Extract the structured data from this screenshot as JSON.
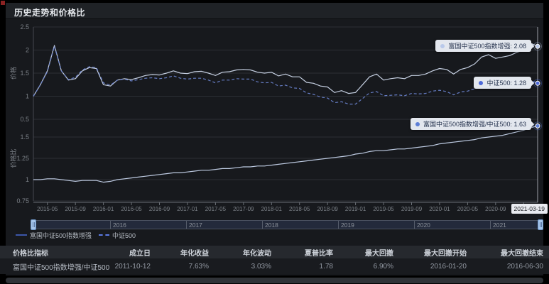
{
  "header": {
    "title": "历史走势和价格比"
  },
  "colors": {
    "background": "#17191d",
    "fund_line": "#cfd9ec",
    "index_line": "#6a83cf",
    "ratio_line": "#c6d4ec",
    "tooltip_bg": "#e3e7ee",
    "grid_line": "#2c2f35",
    "slider_handle": "#a6c6ec"
  },
  "chart_data": {
    "type": "line",
    "x_range": [
      "2015-03",
      "2021-03"
    ],
    "interval": "monthly",
    "xticks": [
      "2015-05",
      "2015-09",
      "2016-01",
      "2016-05",
      "2016-09",
      "2017-01",
      "2017-05",
      "2017-09",
      "2018-01",
      "2018-05",
      "2018-09",
      "2019-01",
      "2019-05",
      "2019-09",
      "2020-01",
      "2020-05",
      "2020-09",
      "2021-01"
    ],
    "crosshair_date": "2021-03-19",
    "panels": [
      {
        "name": "price",
        "ylabel": "价格",
        "ymin": 0.5,
        "ymax": 2.5,
        "yticks": [
          2.5,
          2,
          1.5,
          1,
          0.5
        ],
        "series": [
          {
            "name": "富国中证500指数增强",
            "color": "#cfd9ec",
            "dash": "",
            "values": [
              1.0,
              1.25,
              1.55,
              2.1,
              1.55,
              1.35,
              1.38,
              1.55,
              1.62,
              1.6,
              1.25,
              1.22,
              1.35,
              1.38,
              1.36,
              1.4,
              1.45,
              1.47,
              1.46,
              1.5,
              1.55,
              1.5,
              1.49,
              1.53,
              1.54,
              1.5,
              1.45,
              1.52,
              1.53,
              1.57,
              1.58,
              1.57,
              1.52,
              1.5,
              1.52,
              1.44,
              1.48,
              1.42,
              1.42,
              1.3,
              1.28,
              1.22,
              1.2,
              1.08,
              1.12,
              1.06,
              1.08,
              1.25,
              1.42,
              1.48,
              1.35,
              1.38,
              1.4,
              1.38,
              1.45,
              1.45,
              1.48,
              1.55,
              1.6,
              1.58,
              1.48,
              1.58,
              1.62,
              1.7,
              1.85,
              1.9,
              1.82,
              1.85,
              1.88,
              1.95,
              2.0,
              2.15,
              2.08
            ]
          },
          {
            "name": "中证500",
            "color": "#6a83cf",
            "dash": "4 3",
            "values": [
              1.0,
              1.25,
              1.53,
              2.08,
              1.55,
              1.36,
              1.41,
              1.57,
              1.64,
              1.62,
              1.29,
              1.24,
              1.35,
              1.37,
              1.33,
              1.36,
              1.39,
              1.4,
              1.38,
              1.4,
              1.44,
              1.39,
              1.37,
              1.39,
              1.39,
              1.35,
              1.29,
              1.35,
              1.35,
              1.38,
              1.37,
              1.37,
              1.31,
              1.29,
              1.3,
              1.22,
              1.24,
              1.18,
              1.17,
              1.07,
              1.04,
              0.98,
              0.96,
              0.86,
              0.88,
              0.83,
              0.83,
              0.95,
              1.07,
              1.1,
              1.01,
              1.02,
              1.03,
              1.01,
              1.06,
              1.05,
              1.06,
              1.11,
              1.13,
              1.1,
              1.03,
              1.09,
              1.11,
              1.16,
              1.24,
              1.27,
              1.21,
              1.22,
              1.22,
              1.25,
              1.27,
              1.34,
              1.28
            ]
          }
        ]
      },
      {
        "name": "ratio",
        "ylabel": "价格比",
        "ymin": 0.75,
        "ymax": 1.75,
        "yticks": [
          1.5,
          1.25,
          1,
          0.75
        ],
        "series": [
          {
            "name": "富国中证500指数增强/中证500",
            "color": "#c6d4ec",
            "dash": "",
            "values": [
              1.0,
              1.0,
              1.01,
              1.01,
              1.0,
              0.99,
              0.98,
              0.99,
              0.99,
              0.99,
              0.97,
              0.98,
              1.0,
              1.01,
              1.02,
              1.03,
              1.04,
              1.05,
              1.06,
              1.07,
              1.08,
              1.08,
              1.09,
              1.1,
              1.11,
              1.11,
              1.12,
              1.13,
              1.13,
              1.14,
              1.15,
              1.15,
              1.16,
              1.16,
              1.17,
              1.18,
              1.19,
              1.2,
              1.21,
              1.22,
              1.23,
              1.24,
              1.25,
              1.26,
              1.27,
              1.28,
              1.3,
              1.31,
              1.33,
              1.34,
              1.34,
              1.35,
              1.36,
              1.36,
              1.37,
              1.38,
              1.39,
              1.4,
              1.42,
              1.43,
              1.44,
              1.45,
              1.46,
              1.47,
              1.49,
              1.5,
              1.51,
              1.52,
              1.54,
              1.56,
              1.58,
              1.61,
              1.63
            ]
          }
        ]
      }
    ],
    "markers": [
      {
        "panel": 0,
        "value": 2.08,
        "color": "#b9c9ea"
      },
      {
        "panel": 0,
        "value": 1.28,
        "color": "#4d68d8"
      },
      {
        "panel": 1,
        "value": 1.63,
        "color": "#5d7ed6"
      }
    ]
  },
  "chips": [
    {
      "text": "富国中证500指数增强: 2.08",
      "color": "#b9c9ea"
    },
    {
      "text": "中证500: 1.28",
      "color": "#4d68d8"
    },
    {
      "text": "富国中证500指数增强/中证500: 1.63",
      "color": "#5d7ed6"
    }
  ],
  "axis_pointer_date": "2021-03-19",
  "slider": {
    "years": [
      "2016",
      "2017",
      "2018",
      "2019",
      "2020",
      "2021"
    ]
  },
  "legend": [
    {
      "label": "富国中证500指数增强",
      "type": "solid"
    },
    {
      "label": "中证500",
      "type": "dashed"
    }
  ],
  "table": {
    "headers": [
      "价格比指标",
      "成立日",
      "年化收益",
      "年化波动",
      "夏普比率",
      "最大回撤",
      "最大回撤开始",
      "最大回撤结束"
    ],
    "row": [
      "富国中证500指数增强/中证500",
      "2011-10-12",
      "7.63%",
      "3.03%",
      "1.78",
      "6.90%",
      "2016-01-20",
      "2016-06-30"
    ]
  }
}
